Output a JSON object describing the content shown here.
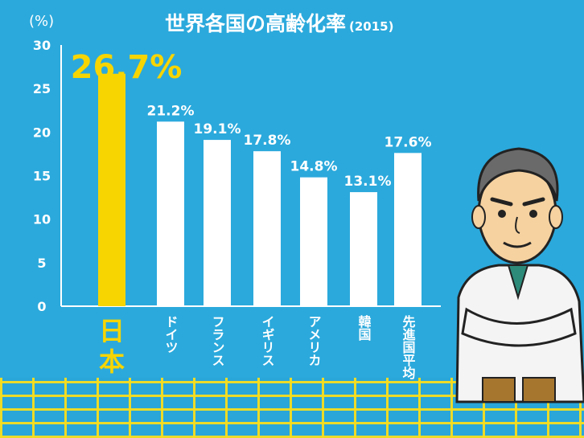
{
  "header": {
    "title": "世界各国の高齢化率",
    "subtitle": "(2015)",
    "unit": "(%)"
  },
  "colors": {
    "background": "#2ba9dc",
    "highlight_bar": "#f7d500",
    "bar": "#ffffff",
    "text": "#ffffff",
    "highlight_text": "#f7d500"
  },
  "chart_data": {
    "type": "bar",
    "title": "世界各国の高齢化率",
    "subtitle": "(2015)",
    "ylabel": "(%)",
    "ylim": [
      0,
      30
    ],
    "yticks": [
      0,
      5,
      10,
      15,
      20,
      25,
      30
    ],
    "categories": [
      "日本",
      "ドイツ",
      "フランス",
      "イギリス",
      "アメリカ",
      "韓国",
      "先進国平均"
    ],
    "values": [
      26.7,
      21.2,
      19.1,
      17.8,
      14.8,
      13.1,
      17.6
    ],
    "data_labels": [
      "26.7%",
      "21.2%",
      "19.1%",
      "17.8%",
      "14.8%",
      "13.1%",
      "17.6%"
    ],
    "highlight_index": 0,
    "grid": false
  }
}
